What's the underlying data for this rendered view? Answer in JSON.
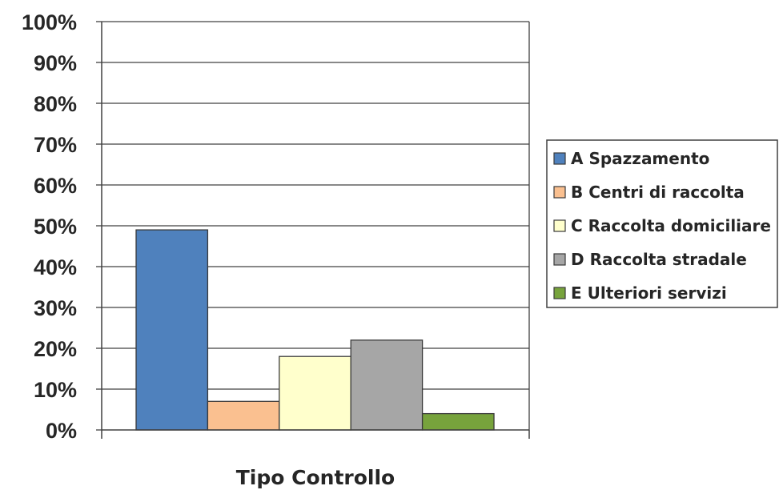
{
  "chart_data": {
    "type": "bar",
    "title": "",
    "xlabel": "Tipo Controllo",
    "ylabel": "",
    "ylim": [
      0,
      100
    ],
    "yticks": [
      "0%",
      "10%",
      "20%",
      "30%",
      "40%",
      "50%",
      "60%",
      "70%",
      "80%",
      "90%",
      "100%"
    ],
    "grid": true,
    "legend_position": "right",
    "series": [
      {
        "name": "A Spazzamento",
        "values": [
          49
        ],
        "color": "#4f81bd"
      },
      {
        "name": "B Centri di raccolta",
        "values": [
          7
        ],
        "color": "#fac090"
      },
      {
        "name": "C Raccolta domiciliare",
        "values": [
          18
        ],
        "color": "#ffffcc"
      },
      {
        "name": "D Raccolta stradale",
        "values": [
          22
        ],
        "color": "#a6a6a6"
      },
      {
        "name": "E Ulteriori servizi",
        "values": [
          4
        ],
        "color": "#77a33c"
      }
    ]
  }
}
